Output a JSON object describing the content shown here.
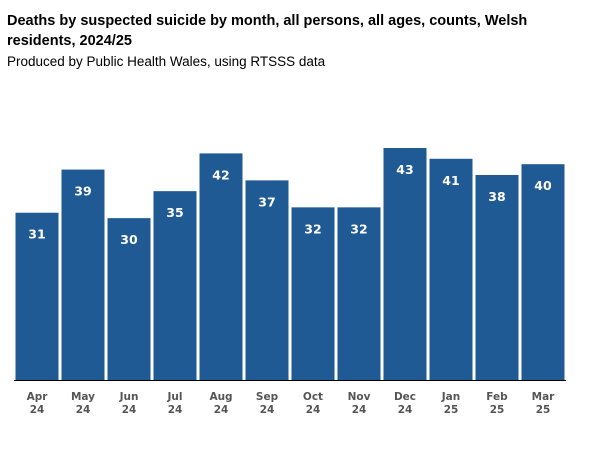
{
  "header": {
    "title": "Deaths by suspected suicide by month, all persons, all ages, counts, Welsh residents, 2024/25",
    "subtitle": "Produced by Public Health Wales, using RTSSS data"
  },
  "colors": {
    "bar": "#1f5a94",
    "bar_label": "#ffffff",
    "tick_label": "#555555",
    "axis": "#000000"
  },
  "chart_data": {
    "type": "bar",
    "title": "Deaths by suspected suicide by month, all persons, all ages, counts, Welsh residents, 2024/25",
    "subtitle": "Produced by Public Health Wales, using RTSSS data",
    "xlabel": "",
    "ylabel": "",
    "categories": [
      [
        "Apr",
        "24"
      ],
      [
        "May",
        "24"
      ],
      [
        "Jun",
        "24"
      ],
      [
        "Jul",
        "24"
      ],
      [
        "Aug",
        "24"
      ],
      [
        "Sep",
        "24"
      ],
      [
        "Oct",
        "24"
      ],
      [
        "Nov",
        "24"
      ],
      [
        "Dec",
        "24"
      ],
      [
        "Jan",
        "25"
      ],
      [
        "Feb",
        "25"
      ],
      [
        "Mar",
        "25"
      ]
    ],
    "values": [
      31,
      39,
      30,
      35,
      42,
      37,
      32,
      32,
      43,
      41,
      38,
      40
    ],
    "ylim": [
      0,
      43
    ],
    "grid": false,
    "legend": "none",
    "data_labels": true
  }
}
